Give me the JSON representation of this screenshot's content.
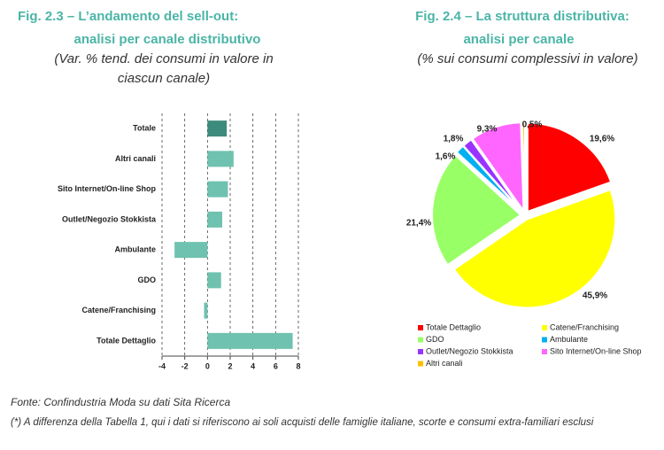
{
  "chart_data": [
    {
      "type": "bar",
      "title": [
        "Fig. 2.3 – L’andamento del sell-out:",
        "analisi per canale distributivo"
      ],
      "subtitle": [
        "(Var. % tend. dei consumi in valore in",
        "ciascun canale)"
      ],
      "categories": [
        "Totale",
        "Altri canali",
        "Sito Internet/On-line Shop",
        "Outlet/Negozio Stokkista",
        "Ambulante",
        "GDO",
        "Catene/Franchising",
        "Totale Dettaglio"
      ],
      "values": [
        1.7,
        2.3,
        1.8,
        1.3,
        -2.9,
        1.2,
        -0.3,
        7.5
      ],
      "colors": [
        "#3d8b7c",
        "#6fc2af",
        "#6fc2af",
        "#6fc2af",
        "#6fc2af",
        "#6fc2af",
        "#6fc2af",
        "#6fc2af"
      ],
      "xlim": [
        -4,
        8
      ],
      "xticks": [
        -4,
        -2,
        0,
        2,
        4,
        6,
        8
      ],
      "grid": true
    },
    {
      "type": "pie",
      "title": [
        "Fig. 2.4 – La struttura distributiva:",
        "analisi per canale"
      ],
      "subtitle": [
        "(% sui consumi complessivi in valore)"
      ],
      "categories": [
        "Totale Dettaglio",
        "Catene/Franchising",
        "GDO",
        "Ambulante",
        "Outlet/Negozio Stokkista",
        "Sito Internet/On-line Shop",
        "Altri canali"
      ],
      "values": [
        19.6,
        45.9,
        21.4,
        1.6,
        1.8,
        9.3,
        0.5
      ],
      "value_labels": [
        "19,6%",
        "45,9%",
        "21,4%",
        "1,6%",
        "1,8%",
        "9,3%",
        "0,5%"
      ],
      "colors": [
        "#ff0000",
        "#ffff00",
        "#99ff66",
        "#00b0f0",
        "#9933ff",
        "#ff66ff",
        "#ffc000"
      ]
    }
  ],
  "source": "Fonte: Confindustria Moda su dati Sita Ricerca",
  "note": "(*) A differenza della Tabella 1, qui i dati si riferiscono ai soli acquisti delle famiglie italiane, scorte e consumi extra-familiari esclusi"
}
